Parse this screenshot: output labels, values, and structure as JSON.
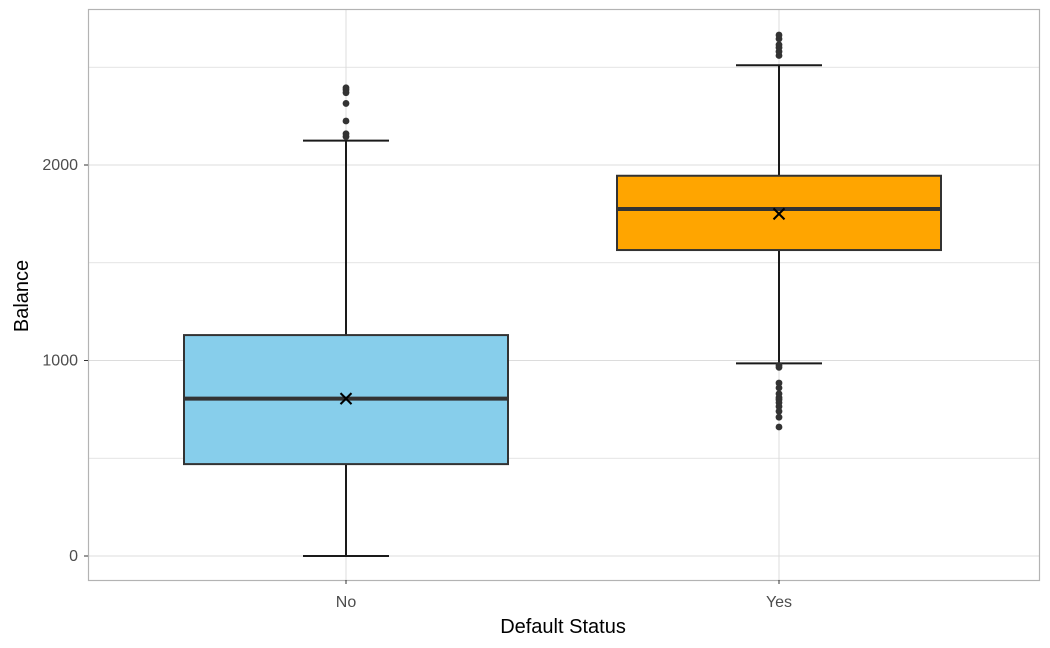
{
  "chart_data": {
    "type": "boxplot",
    "xlabel": "Default Status",
    "ylabel": "Balance",
    "ylim": [
      -130,
      2800
    ],
    "yticks": [
      0,
      1000,
      2000
    ],
    "grid": true,
    "legend": "none",
    "colors": {
      "No": "#87ceeb",
      "Yes": "#ffa500"
    },
    "categories": [
      "No",
      "Yes"
    ],
    "boxes": [
      {
        "category": "No",
        "color": "#87ceeb",
        "whisker_low": 0,
        "q1": 470,
        "median": 805,
        "q3": 1130,
        "whisker_high": 2125,
        "mean": 805,
        "outliers": [
          2145,
          2160,
          2225,
          2315,
          2370,
          2385,
          2395
        ]
      },
      {
        "category": "Yes",
        "color": "#ffa500",
        "whisker_low": 985,
        "q1": 1565,
        "median": 1775,
        "q3": 1945,
        "whisker_high": 2510,
        "mean": 1750,
        "outliers_high": [
          2560,
          2580,
          2600,
          2615,
          2645,
          2665
        ],
        "outliers_low": [
          965,
          975,
          885,
          860,
          830,
          810,
          800,
          785,
          765,
          740,
          710,
          660
        ]
      }
    ]
  }
}
